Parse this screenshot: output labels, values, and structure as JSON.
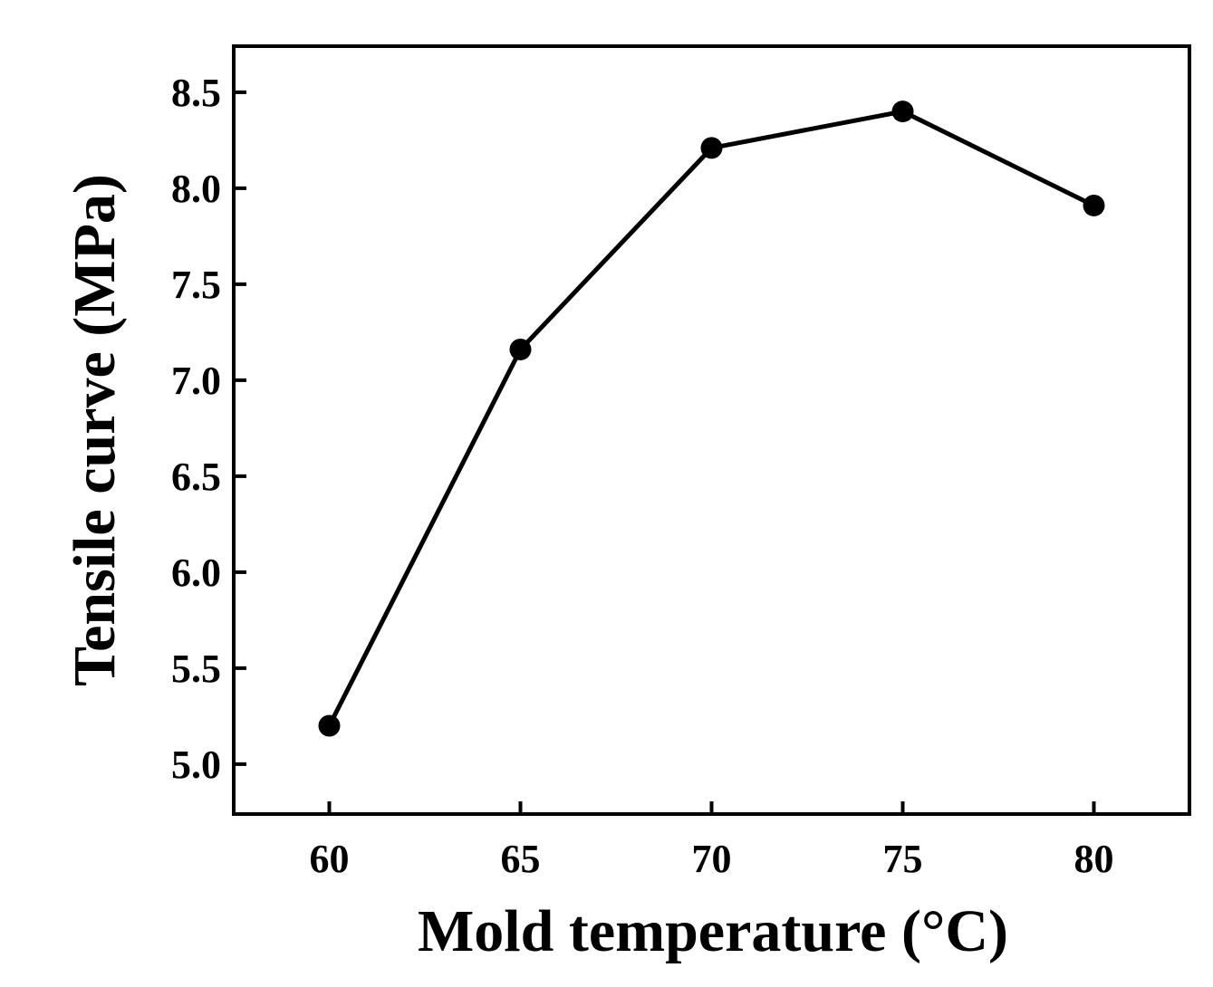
{
  "chart_data": {
    "type": "line",
    "title": "",
    "xlabel": "Mold temperature (°C)",
    "ylabel": "Tensile curve (MPa)",
    "x": [
      60,
      65,
      70,
      75,
      80
    ],
    "series": [
      {
        "values": [
          5.2,
          7.16,
          8.21,
          8.4,
          7.91
        ]
      }
    ],
    "xticks": [
      "60",
      "65",
      "70",
      "75",
      "80"
    ],
    "yticks": [
      "5.0",
      "5.5",
      "6.0",
      "6.5",
      "7.0",
      "7.5",
      "8.0",
      "8.5"
    ],
    "xlim": [
      57.5,
      82.5
    ],
    "ylim": [
      4.74,
      8.74
    ],
    "grid": false,
    "legend": "none",
    "colors": {
      "line": "#000000",
      "marker": "#000000",
      "frame": "#000000"
    }
  }
}
